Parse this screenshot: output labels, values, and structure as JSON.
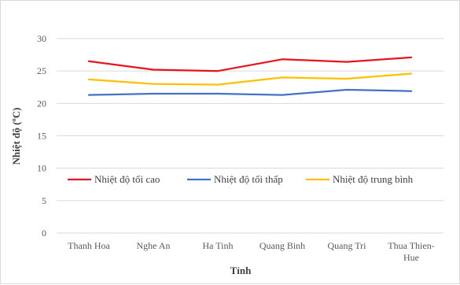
{
  "chart_data": {
    "type": "line",
    "xlabel": "Tỉnh",
    "ylabel": "Nhiệt độ (ºC)",
    "ylim": [
      0,
      30
    ],
    "yticks": [
      0,
      5,
      10,
      15,
      20,
      25,
      30
    ],
    "grid": true,
    "legend_position": "middle",
    "categories": [
      [
        "Thanh Hoa"
      ],
      [
        "Nghe An"
      ],
      [
        "Ha Tinh"
      ],
      [
        "Quang Binh"
      ],
      [
        "Quang Tri"
      ],
      [
        "Thua Thien-",
        "Hue"
      ]
    ],
    "series": [
      {
        "name": "Nhiệt độ tối cao",
        "color": "#e8141b",
        "values": [
          26.5,
          25.2,
          25.0,
          26.8,
          26.4,
          27.1
        ]
      },
      {
        "name": "Nhiệt độ tối thấp",
        "color": "#4472c4",
        "values": [
          21.3,
          21.5,
          21.5,
          21.3,
          22.1,
          21.9
        ]
      },
      {
        "name": "Nhiệt độ trung bình",
        "color": "#ffc000",
        "values": [
          23.7,
          23.0,
          22.9,
          24.0,
          23.8,
          24.6
        ]
      }
    ]
  }
}
